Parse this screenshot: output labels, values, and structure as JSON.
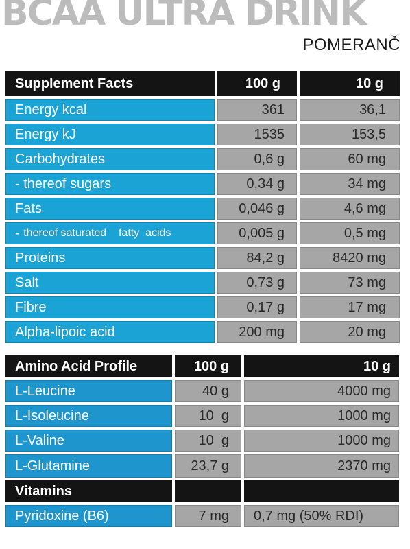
{
  "title": "BCAA ULTRA DRINK",
  "flavor": "POMERANČ",
  "supplement_facts": {
    "header": [
      "Supplement Facts",
      "100 g",
      "10 g"
    ],
    "rows": [
      {
        "label": "Energy  kcal",
        "v100": "361",
        "v10": "36,1"
      },
      {
        "label": "Energy  kJ",
        "v100": "1535",
        "v10": "153,5"
      },
      {
        "label": "Carbohydrates",
        "v100": "0,6 g",
        "v10": "60 mg"
      },
      {
        "label": "- thereof sugars",
        "v100": "0,34 g",
        "v10": "34 mg"
      },
      {
        "label": "Fats",
        "v100": "0,046 g",
        "v10": "4,6 mg"
      },
      {
        "label_prefix": "- ",
        "label": "thereof saturated    fatty  acids",
        "v100": "0,005 g",
        "v10": "0,5 mg"
      },
      {
        "label": "Proteins",
        "v100": "84,2 g",
        "v10": "8420 mg"
      },
      {
        "label": "Salt",
        "v100": "0,73 g",
        "v10": "73 mg"
      },
      {
        "label": "Fibre",
        "v100": "0,17 g",
        "v10": "17 mg"
      },
      {
        "label": "Alpha-lipoic acid",
        "v100": "200 mg",
        "v10": "20 mg"
      }
    ]
  },
  "amino_profile": {
    "header": [
      "Amino Acid Profile",
      "100 g",
      "10 g"
    ],
    "rows": [
      {
        "label": "L-Leucine",
        "v100": "40 g",
        "v10": "4000 mg"
      },
      {
        "label": "L-Isoleucine",
        "v100": "10  g",
        "v10": "1000 mg"
      },
      {
        "label": "L-Valine",
        "v100": "10  g",
        "v10": "1000 mg"
      },
      {
        "label": "L-Glutamine",
        "v100": "23,7 g",
        "v10": "2370 mg"
      }
    ],
    "vitamins_header": "Vitamins",
    "vitamin_rows": [
      {
        "label": "Pyridoxine (B6)",
        "v100": "7 mg",
        "v10": "0,7 mg (50% RDI)"
      }
    ]
  }
}
